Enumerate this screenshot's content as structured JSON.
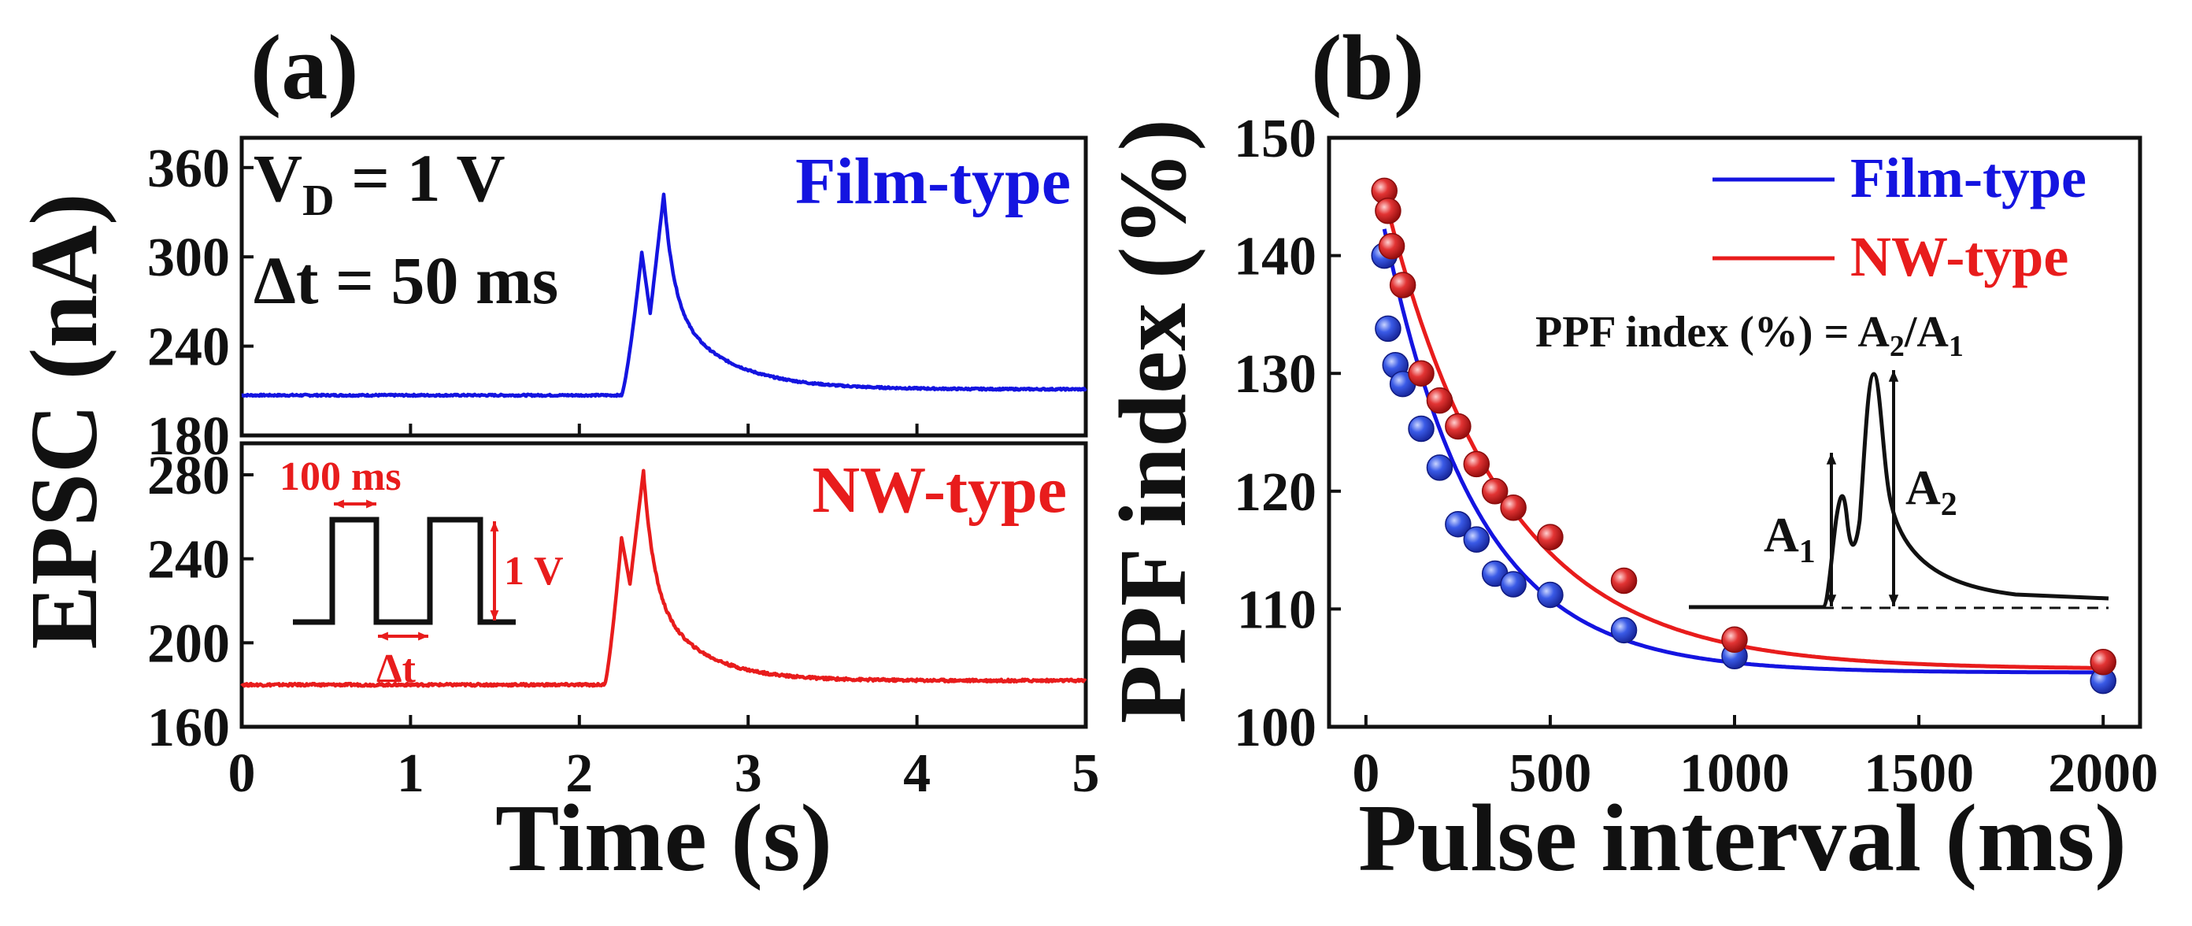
{
  "figure": {
    "colors": {
      "film": "#1414e0",
      "nw": "#e81c1c",
      "black": "#111111",
      "ball_film": "#3050e0",
      "ball_nw": "#e03030"
    }
  },
  "chart_data": [
    {
      "panel_label": "(a)",
      "type": "line",
      "xlabel": "Time (s)",
      "ylabel": "EPSC (nA)",
      "xlim": [
        0,
        5
      ],
      "x_ticks": [
        "0",
        "1",
        "2",
        "3",
        "4",
        "5"
      ],
      "subplots": [
        {
          "name": "Film-type",
          "ylim": [
            180,
            380
          ],
          "y_ticks": [
            "360",
            "300",
            "240",
            "180"
          ],
          "annotations": {
            "vd_main": "V",
            "vd_sub": "D",
            "vd_rest": " = 1 V",
            "dt_text": "Δt = 50 ms"
          },
          "legend": "Film-type",
          "series": {
            "baseline": 207,
            "baseline_end": 211,
            "pulse_start": 2.25,
            "peak1_time": 2.37,
            "peak1": 303,
            "valley_time": 2.42,
            "valley": 262,
            "peak2_time": 2.5,
            "peak2": 342,
            "tau": 0.35
          }
        },
        {
          "name": "NW-type",
          "ylim": [
            160,
            295
          ],
          "y_ticks": [
            "280",
            "240",
            "200",
            "160"
          ],
          "legend": "NW-type",
          "inset": {
            "period_label": "100 ms",
            "dt_label": "Δt",
            "amp_label": "1 V"
          },
          "series": {
            "baseline": 180,
            "baseline_end": 182,
            "pulse_start": 2.15,
            "peak1_time": 2.25,
            "peak1": 250,
            "valley_time": 2.3,
            "valley": 228,
            "peak2_time": 2.38,
            "peak2": 282,
            "tau": 0.3
          }
        }
      ]
    },
    {
      "panel_label": "(b)",
      "type": "scatter",
      "xlabel": "Pulse interval (ms)",
      "ylabel": "PPF index (%)",
      "xlim": [
        -100,
        2100
      ],
      "ylim": [
        100,
        150
      ],
      "x_ticks": [
        0,
        500,
        1000,
        1500,
        2000
      ],
      "y_ticks": [
        100,
        110,
        120,
        130,
        140,
        150
      ],
      "legend": [
        "Film-type",
        "NW-type"
      ],
      "formula": {
        "prefix": "PPF index (%) = A",
        "sub2": "2",
        "slash": "/A",
        "sub1": "1"
      },
      "inset": {
        "a1": "A",
        "a1_sub": "1",
        "a2": "A",
        "a2_sub": "2"
      },
      "series": [
        {
          "name": "Film-type",
          "x": [
            50,
            60,
            80,
            100,
            150,
            200,
            250,
            300,
            350,
            400,
            500,
            700,
            1000,
            2000
          ],
          "y": [
            140,
            133.8,
            130.7,
            129.1,
            125.3,
            122,
            117.2,
            115.9,
            113,
            112.1,
            111.2,
            108.2,
            106,
            103.9
          ],
          "fit": {
            "y0": 104.6,
            "A": 46.0,
            "t": 250
          }
        },
        {
          "name": "NW-type",
          "x": [
            50,
            60,
            70,
            100,
            150,
            200,
            250,
            300,
            350,
            400,
            500,
            700,
            1000,
            2000
          ],
          "y": [
            145.5,
            143.8,
            140.8,
            137.5,
            130,
            127.7,
            125.5,
            122.3,
            120,
            118.6,
            116.1,
            112.4,
            107.4,
            105.5
          ],
          "fit": {
            "y0": 104.9,
            "A": 47.0,
            "t": 320
          }
        }
      ]
    }
  ]
}
